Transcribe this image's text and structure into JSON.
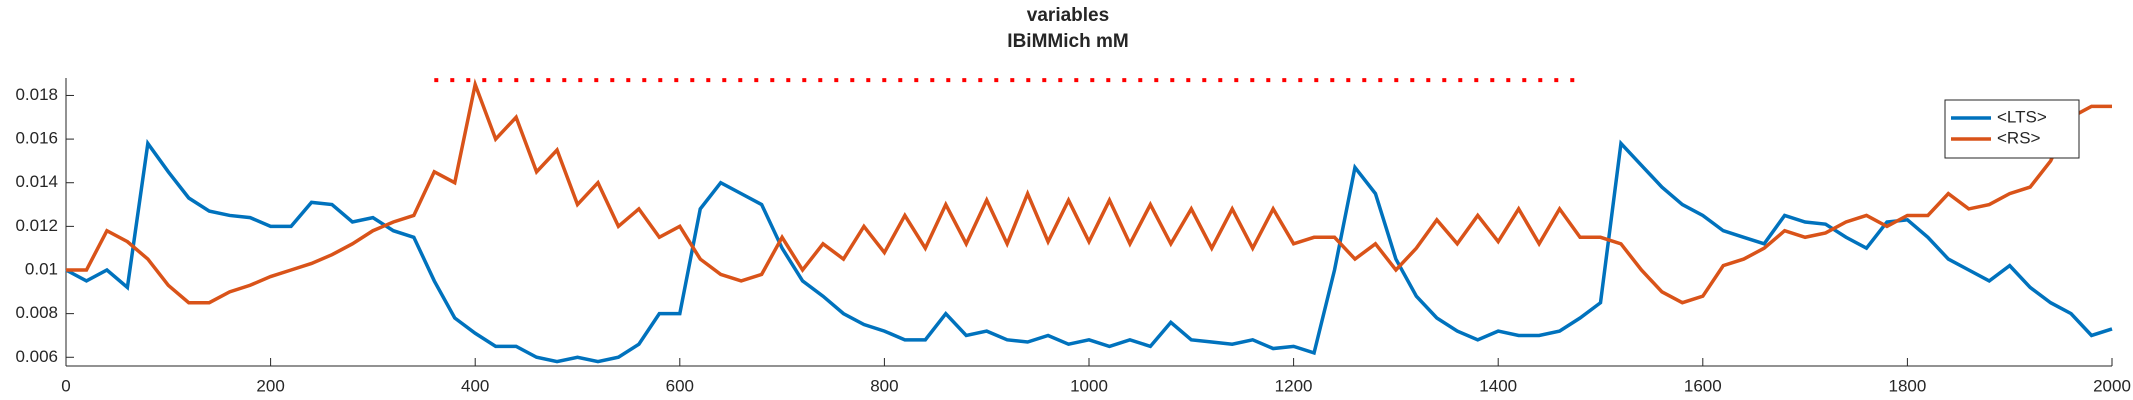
{
  "chart_data": {
    "type": "line",
    "title": "variables",
    "subtitle": "IBiMMich mM",
    "x": [
      0,
      20,
      40,
      60,
      80,
      100,
      120,
      140,
      160,
      180,
      200,
      220,
      240,
      260,
      280,
      300,
      320,
      340,
      360,
      380,
      400,
      420,
      440,
      460,
      480,
      500,
      520,
      540,
      560,
      580,
      600,
      620,
      640,
      660,
      680,
      700,
      720,
      740,
      760,
      780,
      800,
      820,
      840,
      860,
      880,
      900,
      920,
      940,
      960,
      980,
      1000,
      1020,
      1040,
      1060,
      1080,
      1100,
      1120,
      1140,
      1160,
      1180,
      1200,
      1220,
      1240,
      1260,
      1280,
      1300,
      1320,
      1340,
      1360,
      1380,
      1400,
      1420,
      1440,
      1460,
      1480,
      1500,
      1520,
      1540,
      1560,
      1580,
      1600,
      1620,
      1640,
      1660,
      1680,
      1700,
      1720,
      1740,
      1760,
      1780,
      1800,
      1820,
      1840,
      1860,
      1880,
      1900,
      1920,
      1940,
      1960,
      1980,
      2000
    ],
    "series": [
      {
        "name": "<LTS>",
        "color": "#0072bd",
        "values": [
          0.01,
          0.0095,
          0.01,
          0.0092,
          0.0158,
          0.0145,
          0.0133,
          0.0127,
          0.0125,
          0.0124,
          0.012,
          0.012,
          0.0131,
          0.013,
          0.0122,
          0.0124,
          0.0118,
          0.0115,
          0.0095,
          0.0078,
          0.0071,
          0.0065,
          0.0065,
          0.006,
          0.0058,
          0.006,
          0.0058,
          0.006,
          0.0066,
          0.008,
          0.008,
          0.0128,
          0.014,
          0.0135,
          0.013,
          0.011,
          0.0095,
          0.0088,
          0.008,
          0.0075,
          0.0072,
          0.0068,
          0.0068,
          0.008,
          0.007,
          0.0072,
          0.0068,
          0.0067,
          0.007,
          0.0066,
          0.0068,
          0.0065,
          0.0068,
          0.0065,
          0.0076,
          0.0068,
          0.0067,
          0.0066,
          0.0068,
          0.0064,
          0.0065,
          0.0062,
          0.01,
          0.0147,
          0.0135,
          0.0105,
          0.0088,
          0.0078,
          0.0072,
          0.0068,
          0.0072,
          0.007,
          0.007,
          0.0072,
          0.0078,
          0.0085,
          0.0158,
          0.0148,
          0.0138,
          0.013,
          0.0125,
          0.0118,
          0.0115,
          0.0112,
          0.0125,
          0.0122,
          0.0121,
          0.0115,
          0.011,
          0.0122,
          0.0123,
          0.0115,
          0.0105,
          0.01,
          0.0095,
          0.0102,
          0.0092,
          0.0085,
          0.008,
          0.007,
          0.0073
        ]
      },
      {
        "name": "<RS>",
        "color": "#d95319",
        "values": [
          0.01,
          0.01,
          0.0118,
          0.0113,
          0.0105,
          0.0093,
          0.0085,
          0.0085,
          0.009,
          0.0093,
          0.0097,
          0.01,
          0.0103,
          0.0107,
          0.0112,
          0.0118,
          0.0122,
          0.0125,
          0.0145,
          0.014,
          0.0185,
          0.016,
          0.017,
          0.0145,
          0.0155,
          0.013,
          0.014,
          0.012,
          0.0128,
          0.0115,
          0.012,
          0.0105,
          0.0098,
          0.0095,
          0.0098,
          0.0115,
          0.01,
          0.0112,
          0.0105,
          0.012,
          0.0108,
          0.0125,
          0.011,
          0.013,
          0.0112,
          0.0132,
          0.0112,
          0.0135,
          0.0113,
          0.0132,
          0.0113,
          0.0132,
          0.0112,
          0.013,
          0.0112,
          0.0128,
          0.011,
          0.0128,
          0.011,
          0.0128,
          0.0112,
          0.0115,
          0.0115,
          0.0105,
          0.0112,
          0.01,
          0.011,
          0.0123,
          0.0112,
          0.0125,
          0.0113,
          0.0128,
          0.0112,
          0.0128,
          0.0115,
          0.0115,
          0.0112,
          0.01,
          0.009,
          0.0085,
          0.0088,
          0.0102,
          0.0105,
          0.011,
          0.0118,
          0.0115,
          0.0117,
          0.0122,
          0.0125,
          0.012,
          0.0125,
          0.0125,
          0.0135,
          0.0128,
          0.013,
          0.0135,
          0.0138,
          0.015,
          0.017,
          0.0175,
          0.0175
        ]
      },
      {
        "color": "#ff0000",
        "dotted": true,
        "values": [
          null,
          null,
          null,
          null,
          null,
          null,
          null,
          null,
          null,
          null,
          null,
          null,
          null,
          null,
          null,
          null,
          null,
          null,
          0.0187,
          0.0187,
          0.0187,
          0.0187,
          0.0187,
          0.0187,
          0.0187,
          0.0187,
          0.0187,
          0.0187,
          0.0187,
          0.0187,
          0.0187,
          0.0187,
          0.0187,
          0.0187,
          0.0187,
          0.0187,
          0.0187,
          0.0187,
          0.0187,
          0.0187,
          0.0187,
          0.0187,
          0.0187,
          0.0187,
          0.0187,
          0.0187,
          0.0187,
          0.0187,
          0.0187,
          0.0187,
          0.0187,
          0.0187,
          0.0187,
          0.0187,
          0.0187,
          0.0187,
          0.0187,
          0.0187,
          0.0187,
          0.0187,
          0.0187,
          0.0187,
          0.0187,
          0.0187,
          0.0187,
          0.0187,
          0.0187,
          0.0187,
          0.0187,
          0.0187,
          0.0187,
          0.0187,
          0.0187,
          0.0187,
          0.0187,
          null,
          null,
          null,
          null,
          null,
          null,
          null,
          null,
          null,
          null,
          null,
          null,
          null,
          null,
          null,
          null,
          null,
          null,
          null,
          null,
          null,
          null,
          null,
          null,
          null,
          null
        ]
      }
    ],
    "xlim": [
      0,
      2000
    ],
    "xticks": [
      0,
      200,
      400,
      600,
      800,
      1000,
      1200,
      1400,
      1600,
      1800,
      2000
    ],
    "ylim": [
      0.0056,
      0.0188
    ],
    "yticks": [
      0.006,
      0.008,
      0.01,
      0.012,
      0.014,
      0.016,
      0.018
    ],
    "grid": false,
    "legend": "northeast"
  }
}
